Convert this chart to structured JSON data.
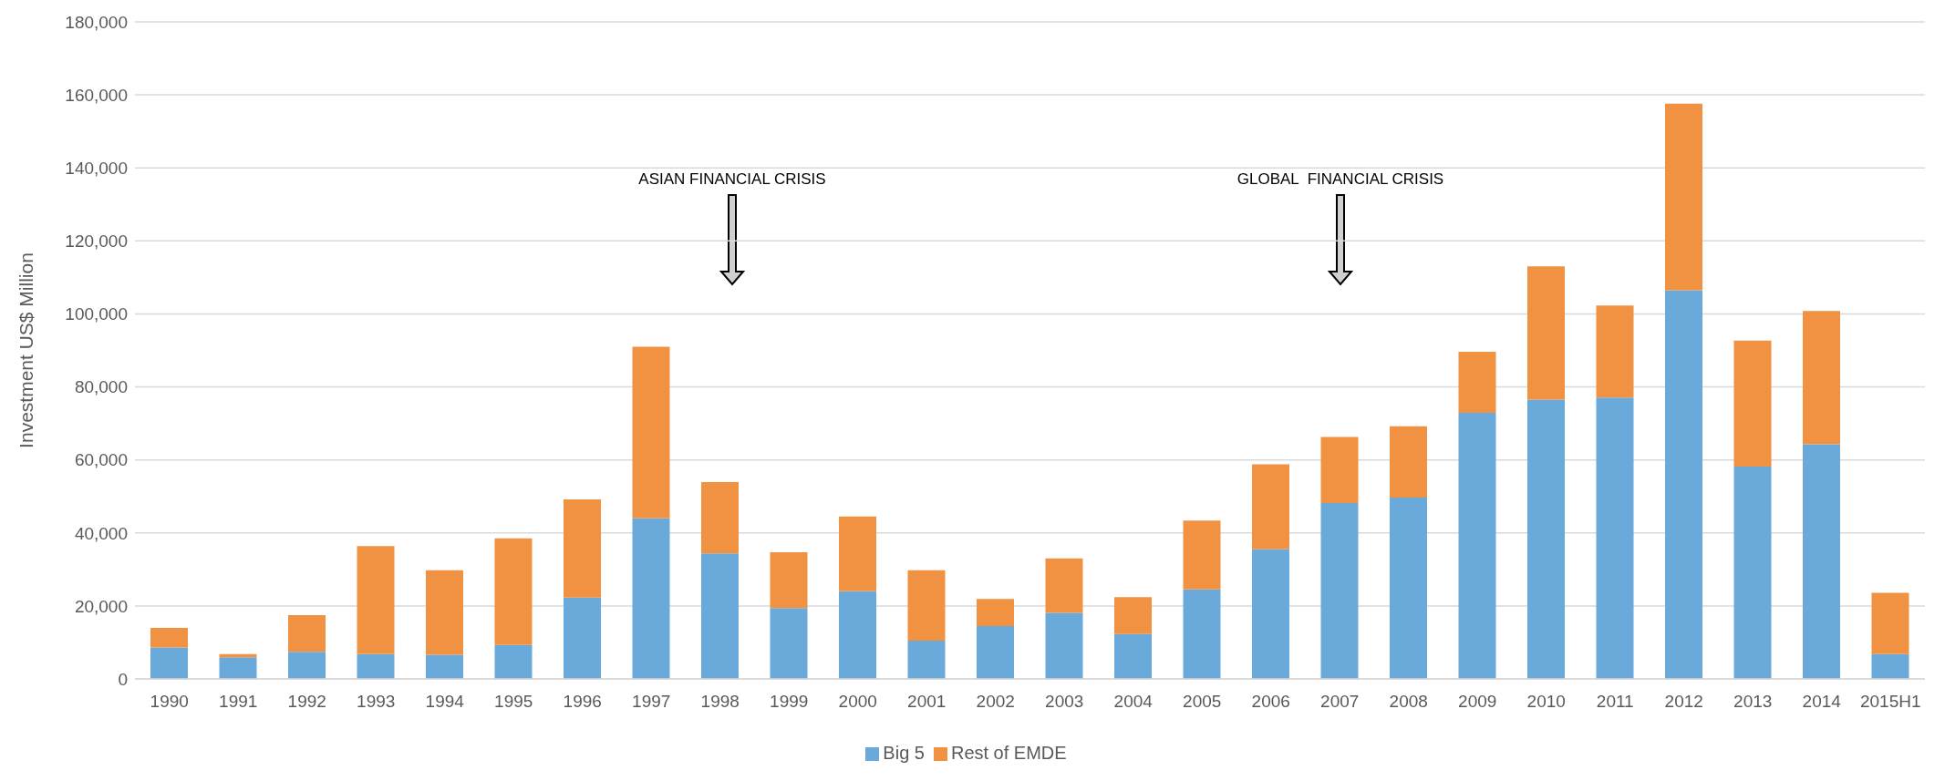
{
  "chart_data": {
    "type": "bar",
    "stacked": true,
    "ylabel": "Investment US$ Million",
    "categories": [
      "1990",
      "1991",
      "1992",
      "1993",
      "1994",
      "1995",
      "1996",
      "1997",
      "1998",
      "1999",
      "2000",
      "2001",
      "2002",
      "2003",
      "2004",
      "2005",
      "2006",
      "2007",
      "2008",
      "2009",
      "2010",
      "2011",
      "2012",
      "2013",
      "2014",
      "2015H1"
    ],
    "series": [
      {
        "name": "Big 5",
        "color": "#6aaadb",
        "values": [
          8600,
          5900,
          7400,
          6800,
          6600,
          9300,
          22300,
          44000,
          34400,
          19400,
          24000,
          10500,
          14500,
          18100,
          12300,
          24500,
          35500,
          48200,
          49700,
          72900,
          76500,
          77100,
          106500,
          58200,
          64300,
          6800
        ]
      },
      {
        "name": "Rest of EMDE",
        "color": "#f09242",
        "values": [
          5400,
          900,
          10100,
          29600,
          23200,
          29200,
          26900,
          47000,
          19500,
          15300,
          20500,
          19300,
          7400,
          14900,
          10100,
          18900,
          23300,
          18100,
          19500,
          16700,
          36500,
          25200,
          51100,
          34500,
          36500,
          16800
        ]
      }
    ],
    "ylim": [
      0,
      180000
    ],
    "yticks": [
      0,
      {
        "value": 20000,
        "label": "20,000"
      },
      {
        "value": 40000,
        "label": "40,000"
      },
      {
        "value": 60000,
        "label": "60,000"
      },
      {
        "value": 80000,
        "label": "80,000"
      },
      {
        "value": 100000,
        "label": "100,000"
      },
      {
        "value": 120000,
        "label": "120,000"
      },
      {
        "value": 140000,
        "label": "140,000"
      },
      {
        "value": 160000,
        "label": "160,000"
      },
      {
        "value": 180000,
        "label": "180,000"
      }
    ],
    "grid": "y",
    "legend": "bottom",
    "annotations": [
      "ASIAN FINANCIAL CRISIS",
      "GLOBAL  FINANCIAL CRISIS"
    ]
  }
}
